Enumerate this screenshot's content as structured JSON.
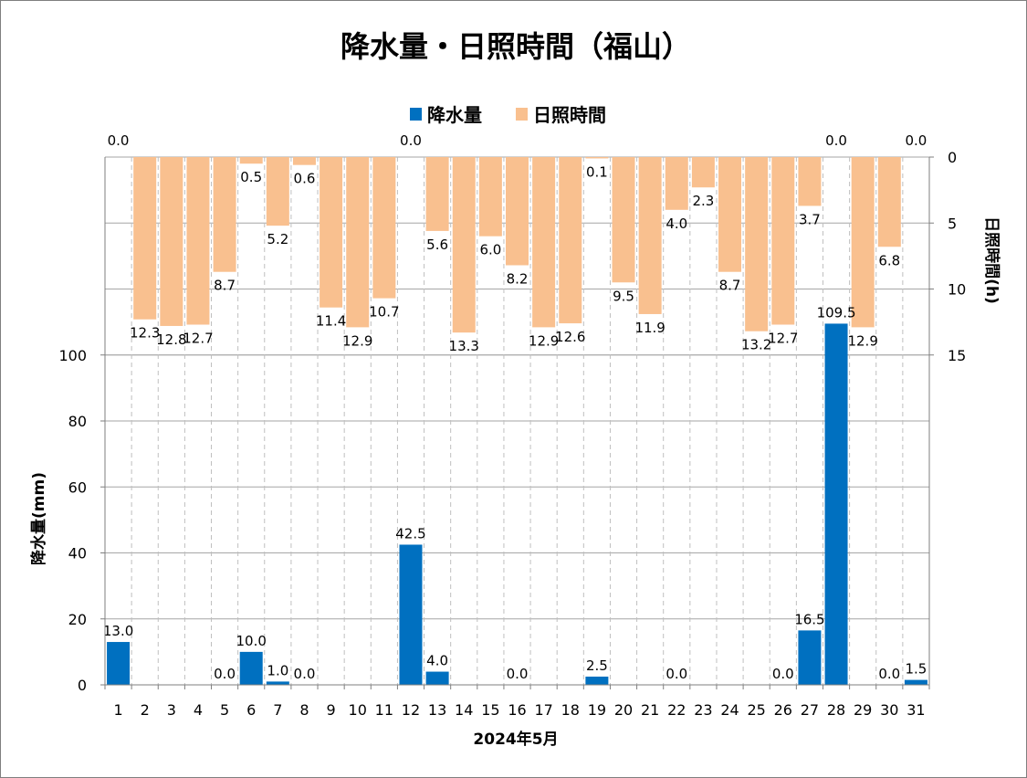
{
  "chart_data": {
    "type": "bar",
    "title": "降水量・日照時間（福山）",
    "xlabel": "2024年5月",
    "ylabel_left": "降水量(mm)",
    "ylabel_right": "日照時間(h)",
    "categories": [
      "1",
      "2",
      "3",
      "4",
      "5",
      "6",
      "7",
      "8",
      "9",
      "10",
      "11",
      "12",
      "13",
      "14",
      "15",
      "16",
      "17",
      "18",
      "19",
      "20",
      "21",
      "22",
      "23",
      "24",
      "25",
      "26",
      "27",
      "28",
      "29",
      "30",
      "31"
    ],
    "left_axis": {
      "ticks": [
        "0",
        "20",
        "40",
        "60",
        "80",
        "100"
      ],
      "range": [
        0,
        160
      ]
    },
    "right_axis": {
      "ticks": [
        "0",
        "5",
        "10",
        "15"
      ],
      "range": [
        0,
        40
      ],
      "inverted": true
    },
    "series": [
      {
        "name": "降水量",
        "axis": "left",
        "color": "#0070c0",
        "values": [
          13.0,
          null,
          null,
          null,
          0.0,
          10.0,
          1.0,
          0.0,
          null,
          null,
          null,
          42.5,
          4.0,
          null,
          null,
          0.0,
          null,
          null,
          2.5,
          null,
          null,
          0.0,
          null,
          null,
          null,
          0.0,
          16.5,
          109.5,
          null,
          0.0,
          1.5
        ],
        "labels": [
          "13.0",
          "",
          "",
          "",
          "0.0",
          "10.0",
          "1.0",
          "0.0",
          "",
          "",
          "",
          "42.5",
          "4.0",
          "",
          "",
          "0.0",
          "",
          "",
          "2.5",
          "",
          "",
          "0.0",
          "",
          "",
          "",
          "0.0",
          "16.5",
          "109.5",
          "",
          "0.0",
          "1.5"
        ]
      },
      {
        "name": "日照時間",
        "axis": "right",
        "color": "#f9c08f",
        "values": [
          0.0,
          12.3,
          12.8,
          12.7,
          8.7,
          0.5,
          5.2,
          0.6,
          11.4,
          12.9,
          10.7,
          0.0,
          5.6,
          13.3,
          6.0,
          8.2,
          12.9,
          12.6,
          0.1,
          9.5,
          11.9,
          4.0,
          2.3,
          8.7,
          13.2,
          12.7,
          3.7,
          0.0,
          12.9,
          6.8,
          0.0
        ],
        "labels": [
          "0.0",
          "12.3",
          "12.8",
          "12.7",
          "8.7",
          "0.5",
          "5.2",
          "0.6",
          "11.4",
          "12.9",
          "10.7",
          "0.0",
          "5.6",
          "13.3",
          "6.0",
          "8.2",
          "12.9",
          "12.6",
          "0.1",
          "9.5",
          "11.9",
          "4.0",
          "2.3",
          "8.7",
          "13.2",
          "12.7",
          "3.7",
          "0.0",
          "12.9",
          "6.8",
          "0.0"
        ]
      }
    ],
    "legend": {
      "position": "top-center",
      "entries": [
        "降水量",
        "日照時間"
      ]
    },
    "grid": true
  }
}
